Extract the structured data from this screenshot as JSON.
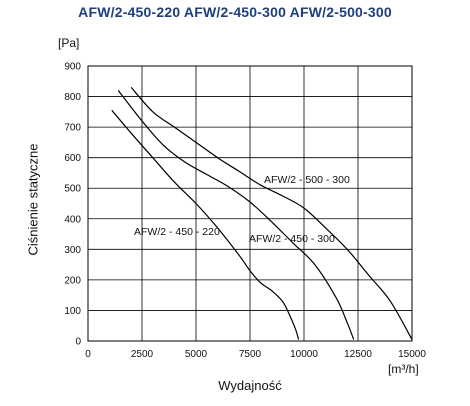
{
  "chart_data": {
    "type": "line",
    "title": "AFW/2-450-220 AFW/2-450-300 AFW/2-500-300",
    "xlabel": "Wydajność",
    "ylabel": "Ciśnienie statyczne",
    "x_unit": "[m³/h]",
    "y_unit": "[Pa]",
    "xlim": [
      0,
      15000
    ],
    "ylim": [
      0,
      900
    ],
    "x_ticks": [
      "0",
      "2500",
      "5000",
      "7500",
      "10000",
      "12500",
      "15000"
    ],
    "y_ticks": [
      "0",
      "100",
      "200",
      "300",
      "400",
      "500",
      "600",
      "700",
      "800",
      "900"
    ],
    "grid": true,
    "series": [
      {
        "name": "AFW/2 - 450 - 220",
        "x": [
          1100,
          2000,
          3000,
          4000,
          5000,
          6000,
          7000,
          7500,
          8000,
          8500,
          9000,
          9300,
          9600,
          9750
        ],
        "y": [
          755,
          680,
          600,
          520,
          450,
          370,
          280,
          230,
          190,
          165,
          130,
          90,
          40,
          5
        ]
      },
      {
        "name": "AFW/2 - 450 - 300",
        "x": [
          1400,
          2500,
          3500,
          4500,
          5500,
          6500,
          7500,
          8500,
          9500,
          10500,
          11500,
          12000,
          12300
        ],
        "y": [
          820,
          720,
          640,
          585,
          545,
          505,
          455,
          390,
          320,
          250,
          140,
          60,
          5
        ]
      },
      {
        "name": "AFW/2 - 500 - 300",
        "x": [
          2000,
          3000,
          4000,
          5000,
          6000,
          7000,
          8000,
          9000,
          10000,
          11000,
          12000,
          13000,
          14000,
          15000
        ],
        "y": [
          830,
          750,
          700,
          650,
          600,
          555,
          510,
          475,
          435,
          370,
          300,
          215,
          130,
          5
        ]
      }
    ],
    "annotations": [
      "AFW/2 - 450 - 220",
      "AFW/2 - 450 - 300",
      "AFW/2 - 500 - 300"
    ]
  }
}
